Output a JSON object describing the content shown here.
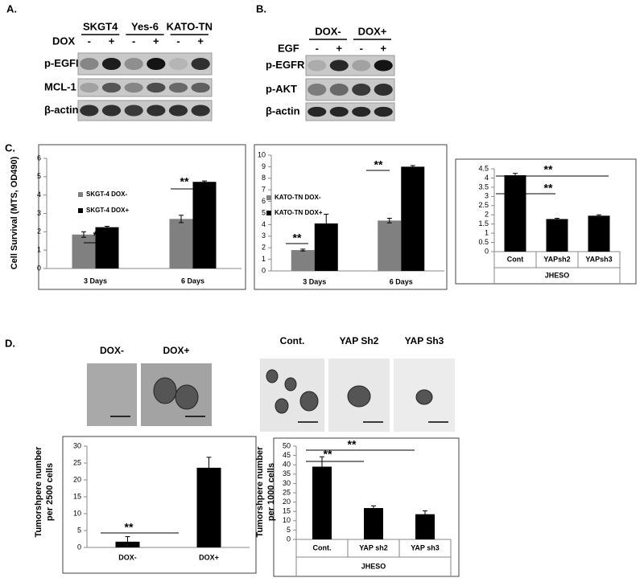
{
  "panel_labels": [
    "A.",
    "B.",
    "C.",
    "D."
  ],
  "blot_a": {
    "groups": [
      "SKGT4",
      "Yes-6",
      "KATO-TN"
    ],
    "treatment": "DOX",
    "signs": [
      "-",
      "+",
      "-",
      "+",
      "-",
      "+"
    ],
    "rows": [
      "p-EGFR",
      "MCL-1",
      "β-actin"
    ]
  },
  "blot_b": {
    "groups": [
      "DOX-",
      "DOX+"
    ],
    "treatment": "EGF",
    "signs": [
      "-",
      "+",
      "-",
      "+"
    ],
    "rows": [
      "p-EGFR",
      "p-AKT",
      "β-actin"
    ]
  },
  "images": [
    "DOX-",
    "DOX+",
    "Cont.",
    "YAP Sh2",
    "YAP Sh3"
  ],
  "chart_data": [
    {
      "type": "bar",
      "y_label": "Cell Survival (MTS, OD490)",
      "categories": [
        "3 Days",
        "6 Days"
      ],
      "series": [
        {
          "name": "SKGT-4 DOX-",
          "color": "#808080",
          "values": [
            1.85,
            2.7
          ],
          "errors": [
            0.15,
            0.2
          ]
        },
        {
          "name": "SKGT-4 DOX+",
          "color": "#000000",
          "values": [
            2.25,
            4.72
          ],
          "errors": [
            0.05,
            0.05
          ]
        }
      ],
      "ylim": [
        0,
        6
      ],
      "yticks": [
        0,
        1,
        2,
        3,
        4,
        5,
        6
      ],
      "annotations": [
        "**",
        "**"
      ]
    },
    {
      "type": "bar",
      "categories": [
        "3 Days",
        "6 Days"
      ],
      "series": [
        {
          "name": "KATO-TN DOX-",
          "color": "#808080",
          "values": [
            1.8,
            4.35
          ],
          "errors": [
            0.08,
            0.2
          ]
        },
        {
          "name": "KATO-TN DOX+",
          "color": "#000000",
          "values": [
            4.1,
            9.0
          ],
          "errors": [
            0.8,
            0.1
          ]
        }
      ],
      "ylim": [
        0,
        10
      ],
      "yticks": [
        0,
        1,
        2,
        3,
        4,
        5,
        6,
        7,
        8,
        9,
        10
      ],
      "annotations": [
        "**",
        "**"
      ]
    },
    {
      "type": "bar",
      "categories": [
        "Cont",
        "YAPsh2",
        "YAPsh3"
      ],
      "x_label": "JHESO",
      "series": [
        {
          "color": "#000000",
          "values": [
            4.15,
            1.77,
            1.95
          ],
          "errors": [
            0.1,
            0.04,
            0.05
          ]
        }
      ],
      "ylim": [
        0,
        4.5
      ],
      "yticks": [
        0,
        0.5,
        1,
        1.5,
        2,
        2.5,
        3,
        3.5,
        4,
        4.5
      ],
      "annotations": [
        "**",
        "**"
      ]
    },
    {
      "type": "bar",
      "y_label": [
        "Tumorshpere number",
        "per 2500 cells"
      ],
      "categories": [
        "DOX-",
        "DOX+"
      ],
      "series": [
        {
          "color": "#000000",
          "values": [
            1.7,
            23.6
          ],
          "errors": [
            1.5,
            3.1
          ]
        }
      ],
      "ylim": [
        0,
        30
      ],
      "yticks": [
        0,
        5,
        10,
        15,
        20,
        25,
        30
      ],
      "annotations": [
        "**"
      ]
    },
    {
      "type": "bar",
      "y_label": [
        "Tumorshpere number",
        "per 1000 cells"
      ],
      "categories": [
        "Cont.",
        "YAP sh2",
        "YAP sh3"
      ],
      "x_label": "JHESO",
      "series": [
        {
          "color": "#000000",
          "values": [
            39,
            16.8,
            13.5
          ],
          "errors": [
            5.3,
            1.2,
            1.8
          ]
        }
      ],
      "ylim": [
        0,
        50
      ],
      "yticks": [
        0,
        5,
        10,
        15,
        20,
        25,
        30,
        35,
        40,
        45,
        50
      ],
      "annotations": [
        "**",
        "**"
      ]
    }
  ]
}
